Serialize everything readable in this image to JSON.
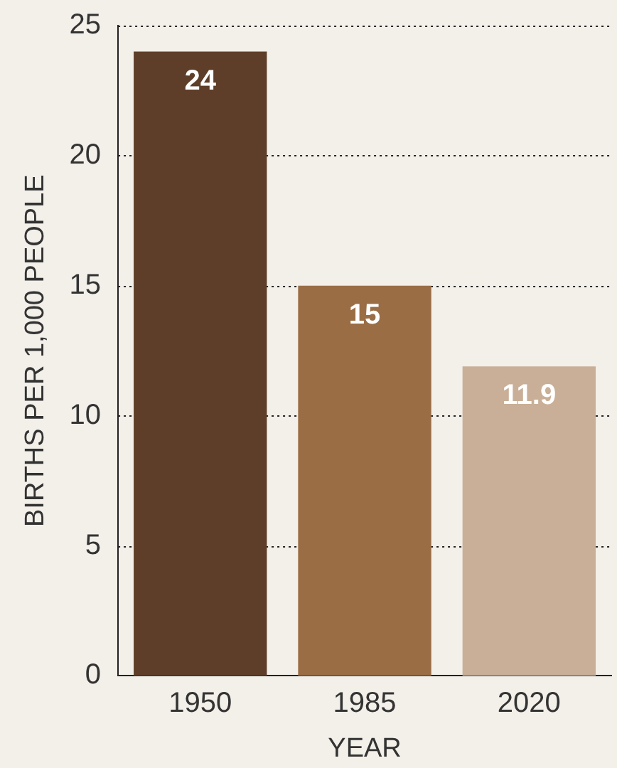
{
  "chart_data": {
    "type": "bar",
    "xlabel": "YEAR",
    "ylabel": "BIRTHS PER 1,000 PEOPLE",
    "categories": [
      "1950",
      "1985",
      "2020"
    ],
    "values": [
      24,
      15,
      11.9
    ],
    "colors": [
      "#5e3e29",
      "#9b6d45",
      "#c9af97"
    ],
    "ylim": [
      0,
      25
    ],
    "yticks": [
      0,
      5,
      10,
      15,
      20,
      25
    ],
    "grid": "y",
    "data_labels": true,
    "legend": false
  }
}
